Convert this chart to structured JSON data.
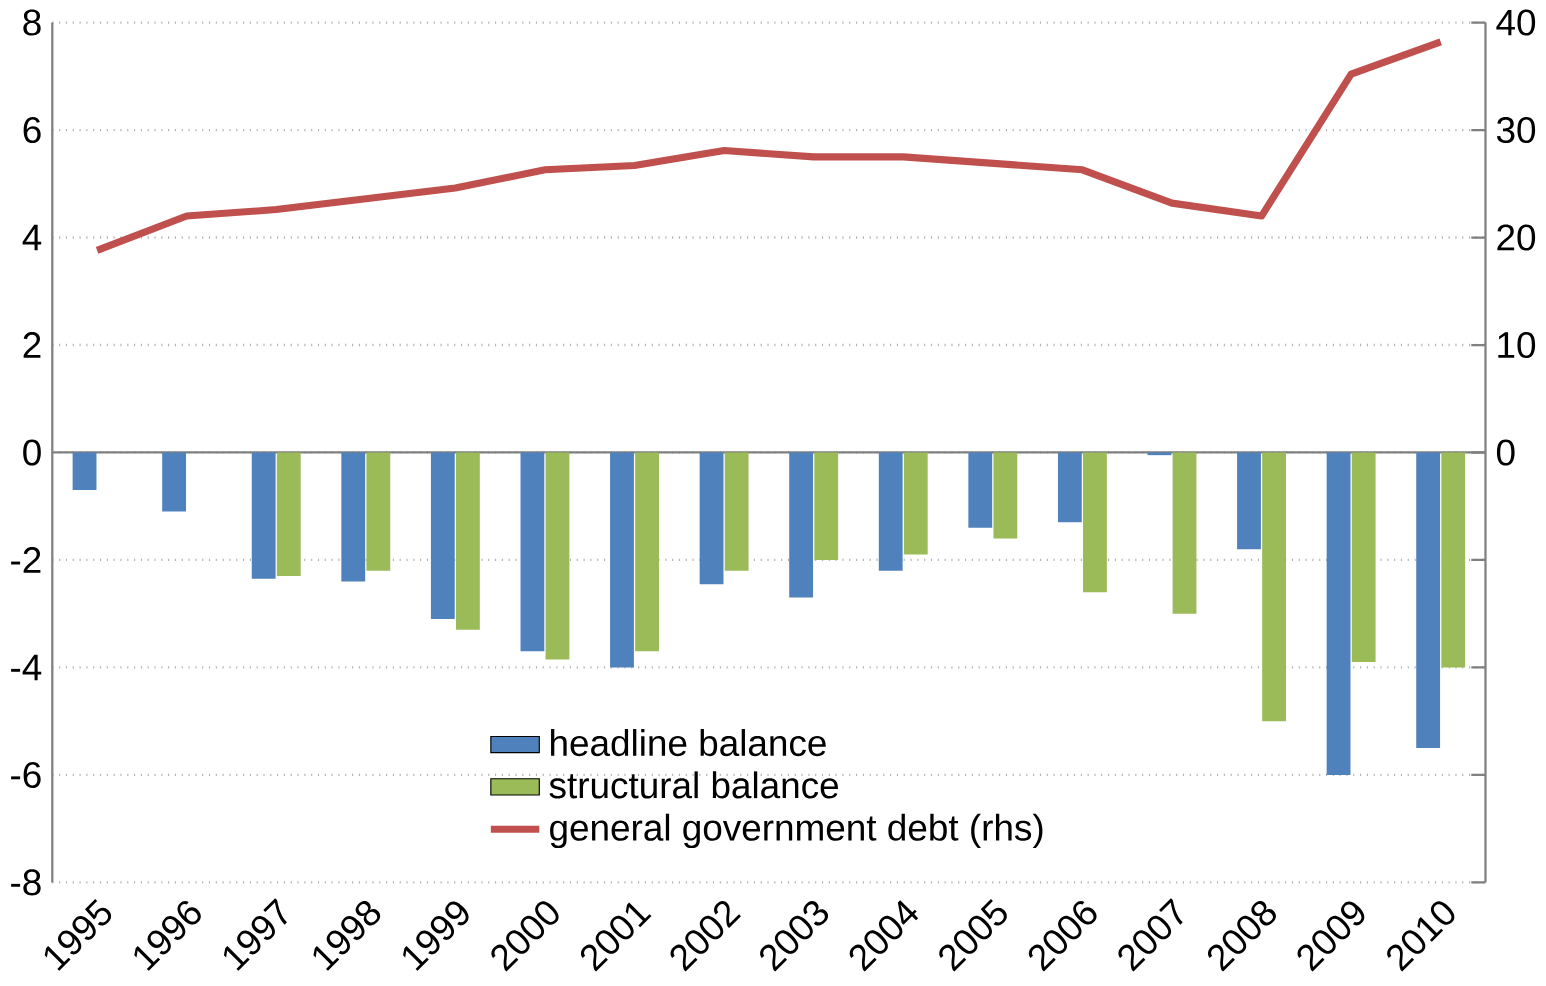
{
  "chart_data": {
    "type": "bar",
    "categories": [
      "1995",
      "1996",
      "1997",
      "1998",
      "1999",
      "2000",
      "2001",
      "2002",
      "2003",
      "2004",
      "2005",
      "2006",
      "2007",
      "2008",
      "2009",
      "2010"
    ],
    "series": [
      {
        "name": "headline balance",
        "color": "#4f81bd",
        "values": [
          -0.7,
          -1.1,
          -2.35,
          -2.4,
          -3.1,
          -3.7,
          -4.0,
          -2.45,
          -2.7,
          -2.2,
          -1.4,
          -1.3,
          -0.05,
          -1.8,
          -6.0,
          -5.5
        ]
      },
      {
        "name": "structural balance",
        "color": "#9bbb59",
        "values": [
          null,
          null,
          -2.3,
          -2.2,
          -3.3,
          -3.85,
          -3.7,
          -2.2,
          -2.0,
          -1.9,
          -1.6,
          -2.6,
          -3.0,
          -5.0,
          -3.9,
          -4.0
        ]
      },
      {
        "name": "general government debt (rhs)",
        "type": "line",
        "axis": "y2",
        "color": "#c0504d",
        "values": [
          18.8,
          22.0,
          22.6,
          23.6,
          24.6,
          26.3,
          26.7,
          28.1,
          27.5,
          27.5,
          26.9,
          26.3,
          23.2,
          22.0,
          35.2,
          38.2
        ]
      }
    ],
    "ylim": [
      -8,
      8
    ],
    "yticks": [
      -8,
      -6,
      -4,
      -2,
      0,
      2,
      4,
      6,
      8
    ],
    "y2lim": [
      -40,
      40
    ],
    "y2ticks": [
      {
        "value": -40,
        "label": null
      },
      {
        "value": -30,
        "label": null
      },
      {
        "value": -20,
        "label": null
      },
      {
        "value": -10,
        "label": null
      },
      0,
      10,
      20,
      30,
      40
    ],
    "grid": "y",
    "legend": "bottom"
  }
}
